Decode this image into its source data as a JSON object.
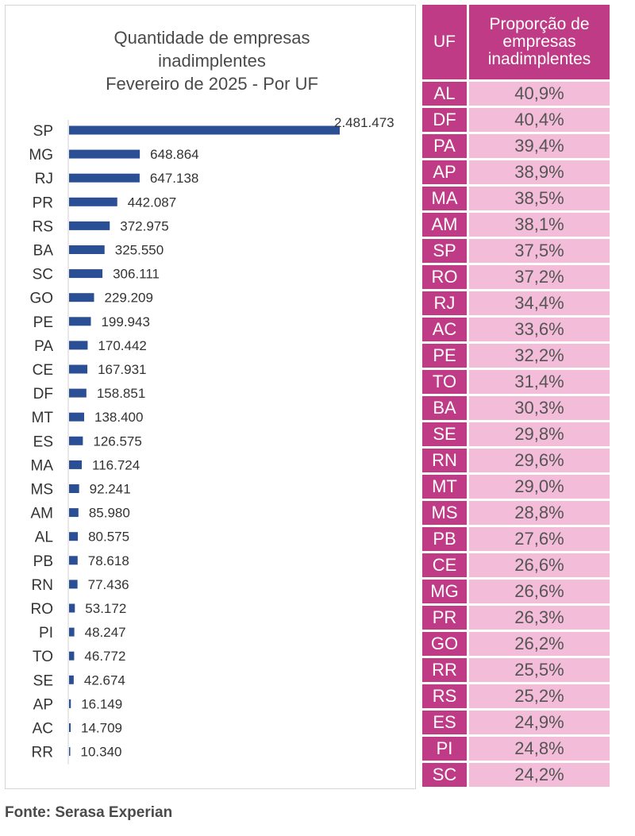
{
  "chart_data": [
    {
      "type": "bar",
      "orientation": "horizontal",
      "title": [
        "Quantidade de empresas",
        "inadimplentes",
        "Fevereiro de 2025 - Por UF"
      ],
      "categories": [
        "SP",
        "MG",
        "RJ",
        "PR",
        "RS",
        "BA",
        "SC",
        "GO",
        "PE",
        "PA",
        "CE",
        "DF",
        "MT",
        "ES",
        "MA",
        "MS",
        "AM",
        "AL",
        "PB",
        "RN",
        "RO",
        "PI",
        "TO",
        "SE",
        "AP",
        "AC",
        "RR"
      ],
      "values": [
        2481473,
        648864,
        647138,
        442087,
        372975,
        325550,
        306111,
        229209,
        199943,
        170442,
        167931,
        158851,
        138400,
        126575,
        116724,
        92241,
        85980,
        80575,
        78618,
        77436,
        53172,
        48247,
        46772,
        42674,
        16149,
        14709,
        10340
      ],
      "value_labels": [
        "2.481.473",
        "648.864",
        "647.138",
        "442.087",
        "372.975",
        "325.550",
        "306.111",
        "229.209",
        "199.943",
        "170.442",
        "167.931",
        "158.851",
        "138.400",
        "126.575",
        "116.724",
        "92.241",
        "85.980",
        "80.575",
        "78.618",
        "77.436",
        "53.172",
        "48.247",
        "46.772",
        "42.674",
        "16.149",
        "14.709",
        "10.340"
      ],
      "bar_color": "#2b4f95",
      "grid": false,
      "legend": "none"
    },
    {
      "type": "table",
      "columns": [
        "UF",
        "Proporção de empresas inadimplentes"
      ],
      "header_lines": [
        "Proporção de",
        "empresas",
        "inadimplentes"
      ],
      "rows": [
        [
          "AL",
          "40,9%"
        ],
        [
          "DF",
          "40,4%"
        ],
        [
          "PA",
          "39,4%"
        ],
        [
          "AP",
          "38,9%"
        ],
        [
          "MA",
          "38,5%"
        ],
        [
          "AM",
          "38,1%"
        ],
        [
          "SP",
          "37,5%"
        ],
        [
          "RO",
          "37,2%"
        ],
        [
          "RJ",
          "34,4%"
        ],
        [
          "AC",
          "33,6%"
        ],
        [
          "PE",
          "32,2%"
        ],
        [
          "TO",
          "31,4%"
        ],
        [
          "BA",
          "30,3%"
        ],
        [
          "SE",
          "29,8%"
        ],
        [
          "RN",
          "29,6%"
        ],
        [
          "MT",
          "29,0%"
        ],
        [
          "MS",
          "28,8%"
        ],
        [
          "PB",
          "27,6%"
        ],
        [
          "CE",
          "26,6%"
        ],
        [
          "MG",
          "26,6%"
        ],
        [
          "PR",
          "26,3%"
        ],
        [
          "GO",
          "26,2%"
        ],
        [
          "RR",
          "25,5%"
        ],
        [
          "RS",
          "25,2%"
        ],
        [
          "ES",
          "24,9%"
        ],
        [
          "PI",
          "24,8%"
        ],
        [
          "SC",
          "24,2%"
        ]
      ],
      "header_color": "#bf3b86",
      "cell_color": "#f3bcd8"
    }
  ],
  "footer": {
    "source": "Fonte: Serasa Experian"
  }
}
